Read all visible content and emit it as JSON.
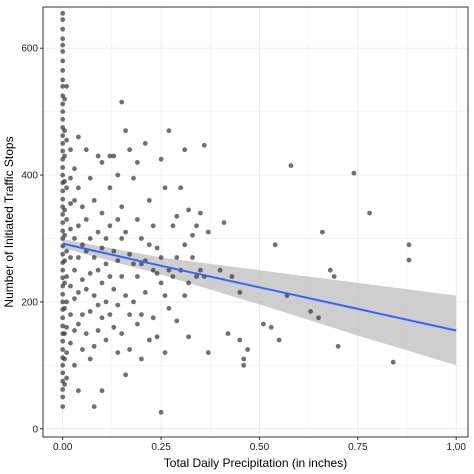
{
  "chart_data": {
    "type": "scatter",
    "title": "",
    "xlabel": "Total Daily Precipitation (in inches)",
    "ylabel": "Number of Initiated Traffic Stops",
    "xlim": [
      -0.05,
      1.03
    ],
    "ylim": [
      -13,
      665
    ],
    "x_ticks": [
      0.0,
      0.25,
      0.5,
      0.75,
      1.0
    ],
    "x_tick_labels": [
      "0.00",
      "0.25",
      "0.50",
      "0.75",
      "1.00"
    ],
    "y_ticks": [
      0,
      200,
      400,
      600
    ],
    "y_tick_labels": [
      "0",
      "200",
      "400",
      "600"
    ],
    "grid": true,
    "legend": "none",
    "colors": {
      "points": "#333333",
      "fit_line": "#3366ff",
      "ribbon": "#bdbdbd",
      "panel_border": "#333333",
      "grid": "#ebebeb"
    },
    "fit": {
      "x": [
        0,
        0.25,
        0.5,
        0.75,
        1.0
      ],
      "y": [
        292,
        257,
        223,
        189,
        155
      ],
      "ci_lower": [
        285,
        243,
        196,
        147,
        100
      ],
      "ci_upper": [
        299,
        270,
        250,
        230,
        210
      ]
    },
    "points": [
      {
        "x": 0,
        "y": 655
      },
      {
        "x": 0,
        "y": 645
      },
      {
        "x": 0,
        "y": 630
      },
      {
        "x": 0,
        "y": 615
      },
      {
        "x": 0,
        "y": 605
      },
      {
        "x": 0,
        "y": 595
      },
      {
        "x": 0,
        "y": 580
      },
      {
        "x": 0,
        "y": 565
      },
      {
        "x": 0,
        "y": 550
      },
      {
        "x": 0,
        "y": 540
      },
      {
        "x": 0,
        "y": 525
      },
      {
        "x": 0,
        "y": 512
      },
      {
        "x": 0,
        "y": 500
      },
      {
        "x": 0,
        "y": 488
      },
      {
        "x": 0,
        "y": 475
      },
      {
        "x": 0,
        "y": 462
      },
      {
        "x": 0,
        "y": 450
      },
      {
        "x": 0,
        "y": 438
      },
      {
        "x": 0,
        "y": 425
      },
      {
        "x": 0,
        "y": 412
      },
      {
        "x": 0,
        "y": 400
      },
      {
        "x": 0,
        "y": 388
      },
      {
        "x": 0,
        "y": 375
      },
      {
        "x": 0,
        "y": 362
      },
      {
        "x": 0,
        "y": 350
      },
      {
        "x": 0,
        "y": 338
      },
      {
        "x": 0,
        "y": 325
      },
      {
        "x": 0,
        "y": 312
      },
      {
        "x": 0,
        "y": 300
      },
      {
        "x": 0,
        "y": 288
      },
      {
        "x": 0,
        "y": 275
      },
      {
        "x": 0,
        "y": 262
      },
      {
        "x": 0,
        "y": 250
      },
      {
        "x": 0,
        "y": 238
      },
      {
        "x": 0,
        "y": 225
      },
      {
        "x": 0,
        "y": 212
      },
      {
        "x": 0,
        "y": 200
      },
      {
        "x": 0,
        "y": 188
      },
      {
        "x": 0,
        "y": 175
      },
      {
        "x": 0,
        "y": 162
      },
      {
        "x": 0,
        "y": 150
      },
      {
        "x": 0,
        "y": 138
      },
      {
        "x": 0,
        "y": 125
      },
      {
        "x": 0,
        "y": 112
      },
      {
        "x": 0,
        "y": 100
      },
      {
        "x": 0,
        "y": 88
      },
      {
        "x": 0,
        "y": 75
      },
      {
        "x": 0,
        "y": 62
      },
      {
        "x": 0,
        "y": 50
      },
      {
        "x": 0,
        "y": 35
      },
      {
        "x": 0.005,
        "y": 520
      },
      {
        "x": 0.005,
        "y": 470
      },
      {
        "x": 0.005,
        "y": 430
      },
      {
        "x": 0.005,
        "y": 390
      },
      {
        "x": 0.005,
        "y": 345
      },
      {
        "x": 0.005,
        "y": 305
      },
      {
        "x": 0.005,
        "y": 265
      },
      {
        "x": 0.005,
        "y": 230
      },
      {
        "x": 0.005,
        "y": 190
      },
      {
        "x": 0.005,
        "y": 150
      },
      {
        "x": 0.005,
        "y": 110
      },
      {
        "x": 0.005,
        "y": 70
      },
      {
        "x": 0.01,
        "y": 540
      },
      {
        "x": 0.01,
        "y": 455
      },
      {
        "x": 0.01,
        "y": 380
      },
      {
        "x": 0.01,
        "y": 330
      },
      {
        "x": 0.01,
        "y": 280
      },
      {
        "x": 0.01,
        "y": 240
      },
      {
        "x": 0.01,
        "y": 200
      },
      {
        "x": 0.01,
        "y": 160
      },
      {
        "x": 0.01,
        "y": 120
      },
      {
        "x": 0.01,
        "y": 80
      },
      {
        "x": 0.02,
        "y": 440
      },
      {
        "x": 0.02,
        "y": 395
      },
      {
        "x": 0.02,
        "y": 355
      },
      {
        "x": 0.02,
        "y": 315
      },
      {
        "x": 0.02,
        "y": 270
      },
      {
        "x": 0.02,
        "y": 225
      },
      {
        "x": 0.02,
        "y": 180
      },
      {
        "x": 0.02,
        "y": 135
      },
      {
        "x": 0.03,
        "y": 410
      },
      {
        "x": 0.03,
        "y": 360
      },
      {
        "x": 0.03,
        "y": 300
      },
      {
        "x": 0.03,
        "y": 250
      },
      {
        "x": 0.03,
        "y": 205
      },
      {
        "x": 0.03,
        "y": 155
      },
      {
        "x": 0.03,
        "y": 100
      },
      {
        "x": 0.04,
        "y": 380
      },
      {
        "x": 0.04,
        "y": 320
      },
      {
        "x": 0.04,
        "y": 270
      },
      {
        "x": 0.04,
        "y": 215
      },
      {
        "x": 0.04,
        "y": 165
      },
      {
        "x": 0.04,
        "y": 60
      },
      {
        "x": 0.05,
        "y": 350
      },
      {
        "x": 0.05,
        "y": 290
      },
      {
        "x": 0.05,
        "y": 235
      },
      {
        "x": 0.05,
        "y": 180
      },
      {
        "x": 0.05,
        "y": 125
      },
      {
        "x": 0.06,
        "y": 330
      },
      {
        "x": 0.06,
        "y": 280
      },
      {
        "x": 0.06,
        "y": 220
      },
      {
        "x": 0.06,
        "y": 150
      },
      {
        "x": 0.07,
        "y": 395
      },
      {
        "x": 0.07,
        "y": 300
      },
      {
        "x": 0.07,
        "y": 245
      },
      {
        "x": 0.07,
        "y": 185
      },
      {
        "x": 0.07,
        "y": 110
      },
      {
        "x": 0.08,
        "y": 360
      },
      {
        "x": 0.08,
        "y": 270
      },
      {
        "x": 0.08,
        "y": 210
      },
      {
        "x": 0.08,
        "y": 130
      },
      {
        "x": 0.08,
        "y": 35
      },
      {
        "x": 0.09,
        "y": 310
      },
      {
        "x": 0.09,
        "y": 250
      },
      {
        "x": 0.09,
        "y": 195
      },
      {
        "x": 0.09,
        "y": 155
      },
      {
        "x": 0.1,
        "y": 420
      },
      {
        "x": 0.1,
        "y": 340
      },
      {
        "x": 0.1,
        "y": 285
      },
      {
        "x": 0.1,
        "y": 230
      },
      {
        "x": 0.1,
        "y": 175
      },
      {
        "x": 0.1,
        "y": 60
      },
      {
        "x": 0.11,
        "y": 300
      },
      {
        "x": 0.11,
        "y": 260
      },
      {
        "x": 0.11,
        "y": 200
      },
      {
        "x": 0.11,
        "y": 140
      },
      {
        "x": 0.12,
        "y": 380
      },
      {
        "x": 0.12,
        "y": 320
      },
      {
        "x": 0.12,
        "y": 240
      },
      {
        "x": 0.12,
        "y": 180
      },
      {
        "x": 0.13,
        "y": 430
      },
      {
        "x": 0.13,
        "y": 280
      },
      {
        "x": 0.13,
        "y": 220
      },
      {
        "x": 0.13,
        "y": 160
      },
      {
        "x": 0.14,
        "y": 400
      },
      {
        "x": 0.14,
        "y": 330
      },
      {
        "x": 0.14,
        "y": 265
      },
      {
        "x": 0.14,
        "y": 195
      },
      {
        "x": 0.14,
        "y": 120
      },
      {
        "x": 0.15,
        "y": 350
      },
      {
        "x": 0.15,
        "y": 300
      },
      {
        "x": 0.15,
        "y": 240
      },
      {
        "x": 0.15,
        "y": 150
      },
      {
        "x": 0.16,
        "y": 470
      },
      {
        "x": 0.16,
        "y": 310
      },
      {
        "x": 0.16,
        "y": 210
      },
      {
        "x": 0.16,
        "y": 85
      },
      {
        "x": 0.17,
        "y": 440
      },
      {
        "x": 0.17,
        "y": 275
      },
      {
        "x": 0.17,
        "y": 180
      },
      {
        "x": 0.17,
        "y": 125
      },
      {
        "x": 0.18,
        "y": 395
      },
      {
        "x": 0.18,
        "y": 260
      },
      {
        "x": 0.18,
        "y": 200
      },
      {
        "x": 0.19,
        "y": 420
      },
      {
        "x": 0.19,
        "y": 330
      },
      {
        "x": 0.19,
        "y": 240
      },
      {
        "x": 0.19,
        "y": 165
      },
      {
        "x": 0.2,
        "y": 300
      },
      {
        "x": 0.2,
        "y": 260
      },
      {
        "x": 0.2,
        "y": 180
      },
      {
        "x": 0.2,
        "y": 110
      },
      {
        "x": 0.21,
        "y": 450
      },
      {
        "x": 0.21,
        "y": 265
      },
      {
        "x": 0.21,
        "y": 215
      },
      {
        "x": 0.22,
        "y": 360
      },
      {
        "x": 0.22,
        "y": 290
      },
      {
        "x": 0.22,
        "y": 140
      },
      {
        "x": 0.23,
        "y": 320
      },
      {
        "x": 0.23,
        "y": 250
      },
      {
        "x": 0.23,
        "y": 175
      },
      {
        "x": 0.24,
        "y": 285
      },
      {
        "x": 0.24,
        "y": 245
      },
      {
        "x": 0.24,
        "y": 145
      },
      {
        "x": 0.25,
        "y": 425
      },
      {
        "x": 0.25,
        "y": 270
      },
      {
        "x": 0.25,
        "y": 230
      },
      {
        "x": 0.25,
        "y": 26
      },
      {
        "x": 0.26,
        "y": 380
      },
      {
        "x": 0.26,
        "y": 210
      },
      {
        "x": 0.26,
        "y": 120
      },
      {
        "x": 0.27,
        "y": 470
      },
      {
        "x": 0.27,
        "y": 250
      },
      {
        "x": 0.27,
        "y": 190
      },
      {
        "x": 0.28,
        "y": 320
      },
      {
        "x": 0.28,
        "y": 240
      },
      {
        "x": 0.29,
        "y": 335
      },
      {
        "x": 0.29,
        "y": 270
      },
      {
        "x": 0.29,
        "y": 170
      },
      {
        "x": 0.3,
        "y": 380
      },
      {
        "x": 0.3,
        "y": 250
      },
      {
        "x": 0.31,
        "y": 440
      },
      {
        "x": 0.31,
        "y": 290
      },
      {
        "x": 0.31,
        "y": 210
      },
      {
        "x": 0.32,
        "y": 345
      },
      {
        "x": 0.32,
        "y": 230
      },
      {
        "x": 0.32,
        "y": 145
      },
      {
        "x": 0.33,
        "y": 305
      },
      {
        "x": 0.33,
        "y": 270
      },
      {
        "x": 0.34,
        "y": 320
      },
      {
        "x": 0.34,
        "y": 240
      },
      {
        "x": 0.35,
        "y": 340
      },
      {
        "x": 0.35,
        "y": 250
      },
      {
        "x": 0.36,
        "y": 447
      },
      {
        "x": 0.36,
        "y": 240
      },
      {
        "x": 0.37,
        "y": 310
      },
      {
        "x": 0.37,
        "y": 120
      },
      {
        "x": 0.4,
        "y": 250
      },
      {
        "x": 0.41,
        "y": 325
      },
      {
        "x": 0.42,
        "y": 150
      },
      {
        "x": 0.43,
        "y": 240
      },
      {
        "x": 0.45,
        "y": 215
      },
      {
        "x": 0.45,
        "y": 140
      },
      {
        "x": 0.46,
        "y": 100
      },
      {
        "x": 0.46,
        "y": 110
      },
      {
        "x": 0.47,
        "y": 125
      },
      {
        "x": 0.51,
        "y": 165
      },
      {
        "x": 0.53,
        "y": 160
      },
      {
        "x": 0.54,
        "y": 290
      },
      {
        "x": 0.55,
        "y": 140
      },
      {
        "x": 0.57,
        "y": 210
      },
      {
        "x": 0.58,
        "y": 415
      },
      {
        "x": 0.63,
        "y": 185
      },
      {
        "x": 0.65,
        "y": 175
      },
      {
        "x": 0.66,
        "y": 310
      },
      {
        "x": 0.68,
        "y": 250
      },
      {
        "x": 0.69,
        "y": 240
      },
      {
        "x": 0.7,
        "y": 130
      },
      {
        "x": 0.74,
        "y": 403
      },
      {
        "x": 0.78,
        "y": 340
      },
      {
        "x": 0.84,
        "y": 105
      },
      {
        "x": 0.88,
        "y": 290
      },
      {
        "x": 0.88,
        "y": 266
      },
      {
        "x": 0.15,
        "y": 515
      },
      {
        "x": 0.09,
        "y": 430
      },
      {
        "x": 0.06,
        "y": 440
      },
      {
        "x": 0.04,
        "y": 460
      },
      {
        "x": 0.12,
        "y": 430
      }
    ]
  }
}
